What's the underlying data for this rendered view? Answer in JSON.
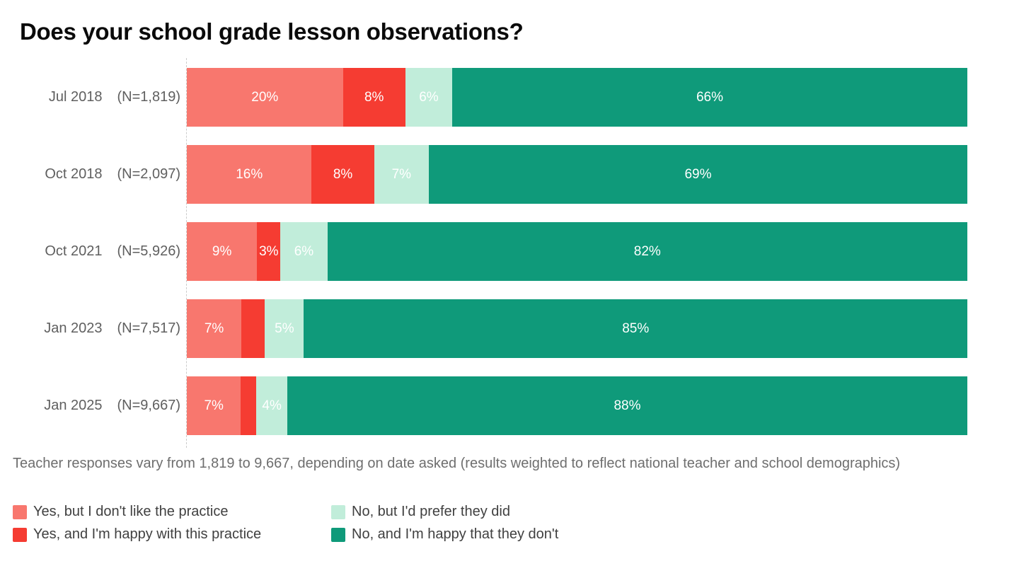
{
  "title": "Does your school grade lesson observations?",
  "footnote": "Teacher responses vary from 1,819 to 9,667, depending on date asked (results weighted to reflect national teacher and school demographics)",
  "colors": {
    "yes_dislike": "#F8776E",
    "yes_happy": "#F53C32",
    "no_prefer": "#C1EDDA",
    "no_happy": "#0F9A7A",
    "axis_line": "#CCCCCC",
    "title_text": "#0A0A0A",
    "row_label_text": "#5F5F5F",
    "footnote_text": "#6E6E6E",
    "legend_text": "#404040",
    "bar_value_text": "#FFFFFF"
  },
  "legend": {
    "items": [
      {
        "key": "yes_dislike",
        "label": "Yes, but I don't like the practice"
      },
      {
        "key": "yes_happy",
        "label": "Yes, and I'm happy with this practice"
      },
      {
        "key": "no_prefer",
        "label": "No, but I'd prefer they did"
      },
      {
        "key": "no_happy",
        "label": "No, and I'm happy that they don't"
      }
    ]
  },
  "chart_data": {
    "type": "bar",
    "variant": "horizontal-stacked",
    "title": "Does your school grade lesson observations?",
    "unit": "percent",
    "xlim": [
      0,
      100
    ],
    "grid": false,
    "legend_position": "bottom",
    "categories": [
      "Jul 2018",
      "Oct 2018",
      "Oct 2021",
      "Jan 2023",
      "Jan 2025"
    ],
    "sample_sizes": [
      "(N=1,819)",
      "(N=2,097)",
      "(N=5,926)",
      "(N=7,517)",
      "(N=9,667)"
    ],
    "series_names": {
      "yes_dislike": "Yes, but I don't like the practice",
      "yes_happy": "Yes, and I'm happy with this practice",
      "no_prefer": "No, but I'd prefer they did",
      "no_happy": "No, and I'm happy that they don't"
    },
    "rows": [
      {
        "period": "Jul 2018",
        "sample": "(N=1,819)",
        "segments": [
          {
            "key": "yes_dislike",
            "value": 20,
            "label": "20%"
          },
          {
            "key": "yes_happy",
            "value": 8,
            "label": "8%"
          },
          {
            "key": "no_prefer",
            "value": 6,
            "label": "6%"
          },
          {
            "key": "no_happy",
            "value": 66,
            "label": "66%"
          }
        ]
      },
      {
        "period": "Oct 2018",
        "sample": "(N=2,097)",
        "segments": [
          {
            "key": "yes_dislike",
            "value": 16,
            "label": "16%"
          },
          {
            "key": "yes_happy",
            "value": 8,
            "label": "8%"
          },
          {
            "key": "no_prefer",
            "value": 7,
            "label": "7%"
          },
          {
            "key": "no_happy",
            "value": 69,
            "label": "69%"
          }
        ]
      },
      {
        "period": "Oct 2021",
        "sample": "(N=5,926)",
        "segments": [
          {
            "key": "yes_dislike",
            "value": 9,
            "label": "9%"
          },
          {
            "key": "yes_happy",
            "value": 3,
            "label": "3%"
          },
          {
            "key": "no_prefer",
            "value": 6,
            "label": "6%"
          },
          {
            "key": "no_happy",
            "value": 82,
            "label": "82%"
          }
        ]
      },
      {
        "period": "Jan 2023",
        "sample": "(N=7,517)",
        "segments": [
          {
            "key": "yes_dislike",
            "value": 7,
            "label": "7%"
          },
          {
            "key": "yes_happy",
            "value": 3,
            "label": ""
          },
          {
            "key": "no_prefer",
            "value": 5,
            "label": "5%"
          },
          {
            "key": "no_happy",
            "value": 85,
            "label": "85%"
          }
        ]
      },
      {
        "period": "Jan 2025",
        "sample": "(N=9,667)",
        "segments": [
          {
            "key": "yes_dislike",
            "value": 7,
            "label": "7%"
          },
          {
            "key": "yes_happy",
            "value": 2,
            "label": ""
          },
          {
            "key": "no_prefer",
            "value": 4,
            "label": "4%"
          },
          {
            "key": "no_happy",
            "value": 88,
            "label": "88%"
          }
        ]
      }
    ]
  }
}
